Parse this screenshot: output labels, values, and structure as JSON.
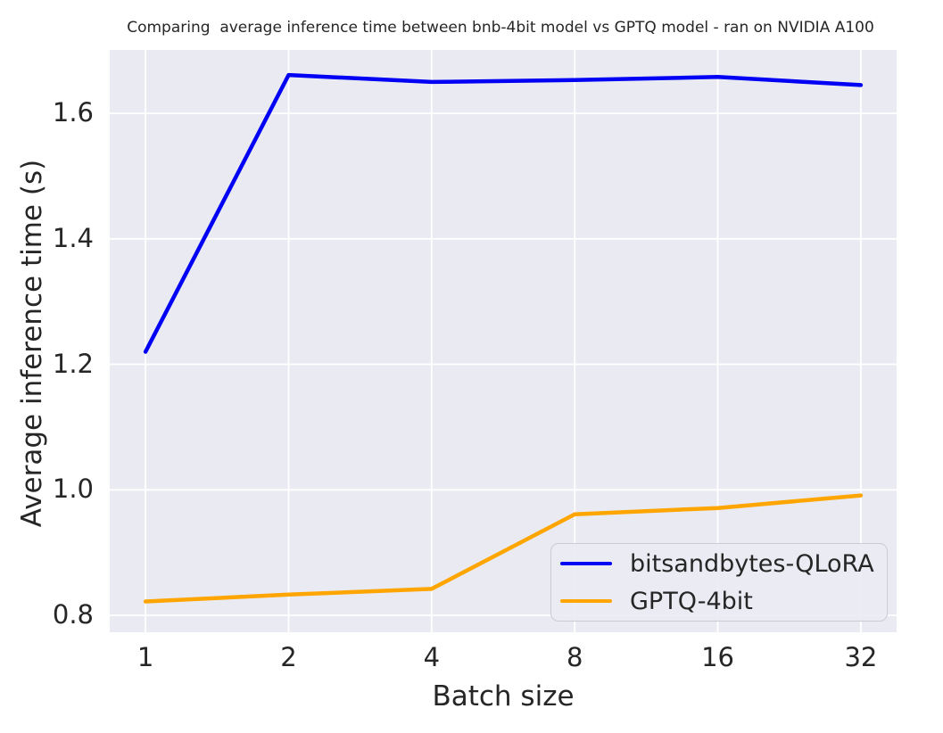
{
  "figure": {
    "background": "#ffffff",
    "text_color": "#262626"
  },
  "chart_data": {
    "type": "line",
    "title": "Comparing  average inference time between bnb-4bit model vs GPTQ model - ran on NVIDIA A100",
    "xlabel": "Batch size",
    "ylabel": "Average inference time (s)",
    "categories": [
      "1",
      "2",
      "4",
      "8",
      "16",
      "32"
    ],
    "series": [
      {
        "name": "bitsandbytes-QLoRA",
        "color": "#0000f5",
        "values": [
          1.22,
          1.661,
          1.65,
          1.653,
          1.658,
          1.645
        ]
      },
      {
        "name": "GPTQ-4bit",
        "color": "#ffa500",
        "values": [
          0.822,
          0.833,
          0.842,
          0.961,
          0.971,
          0.991
        ]
      }
    ],
    "yticks": [
      0.8,
      1.0,
      1.2,
      1.4,
      1.6
    ],
    "ylim": [
      0.773,
      1.701
    ],
    "xlim": [
      -0.25,
      5.25
    ],
    "grid": true,
    "grid_color": "#ffffff",
    "plot_background": "#eaeaf2",
    "legend_position": "lower right",
    "line_width": 4.5
  }
}
